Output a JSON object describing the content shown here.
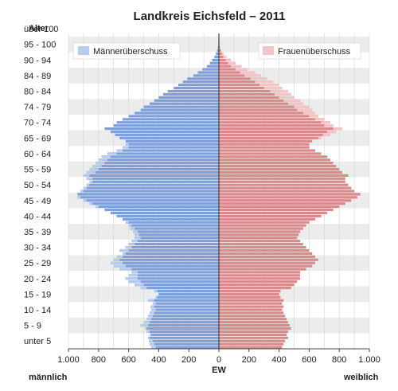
{
  "chart_data": {
    "type": "bar",
    "title": "Landkreis Eichsfeld – 2011",
    "y_axis_title": "Alter",
    "x_axis_title": "EW",
    "left_label": "männlich",
    "right_label": "weiblich",
    "age_tick_labels": [
      "unter 5",
      "5 - 9",
      "10 - 14",
      "15 - 19",
      "20 - 24",
      "25 - 29",
      "30 - 34",
      "35 - 39",
      "40 - 44",
      "45 - 49",
      "50 - 54",
      "55 - 59",
      "60 - 64",
      "65 - 69",
      "70 - 74",
      "74 - 79",
      "80 - 84",
      "84 - 89",
      "90 - 94",
      "95 - 100",
      "über 100"
    ],
    "x_tick_labels": [
      "1.000",
      "800",
      "600",
      "400",
      "200",
      "0",
      "200",
      "400",
      "600",
      "800",
      "1.000"
    ],
    "xlim": [
      -1000,
      1000
    ],
    "ages": [
      0,
      1,
      2,
      3,
      4,
      5,
      6,
      7,
      8,
      9,
      10,
      11,
      12,
      13,
      14,
      15,
      16,
      17,
      18,
      19,
      20,
      21,
      22,
      23,
      24,
      25,
      26,
      27,
      28,
      29,
      30,
      31,
      32,
      33,
      34,
      35,
      36,
      37,
      38,
      39,
      40,
      41,
      42,
      43,
      44,
      45,
      46,
      47,
      48,
      49,
      50,
      51,
      52,
      53,
      54,
      55,
      56,
      57,
      58,
      59,
      60,
      61,
      62,
      63,
      64,
      65,
      66,
      67,
      68,
      69,
      70,
      71,
      72,
      73,
      74,
      75,
      76,
      77,
      78,
      79,
      80,
      81,
      82,
      83,
      84,
      85,
      86,
      87,
      88,
      89,
      90,
      91,
      92,
      93,
      94,
      95,
      96,
      97,
      98,
      99,
      100
    ],
    "series": [
      {
        "name": "männlich",
        "values": [
          450,
          460,
          465,
          470,
          460,
          480,
          490,
          520,
          500,
          480,
          470,
          460,
          450,
          455,
          440,
          470,
          420,
          400,
          430,
          520,
          560,
          600,
          620,
          600,
          580,
          660,
          700,
          720,
          700,
          680,
          640,
          660,
          620,
          600,
          580,
          560,
          560,
          570,
          590,
          600,
          620,
          640,
          680,
          720,
          760,
          820,
          860,
          900,
          940,
          940,
          920,
          900,
          880,
          860,
          880,
          900,
          880,
          860,
          840,
          820,
          800,
          780,
          740,
          680,
          640,
          620,
          620,
          660,
          690,
          720,
          760,
          700,
          680,
          640,
          600,
          560,
          520,
          500,
          460,
          430,
          400,
          370,
          340,
          300,
          270,
          240,
          210,
          170,
          140,
          110,
          80,
          60,
          45,
          30,
          20,
          12,
          7,
          4,
          2,
          1,
          0
        ]
      },
      {
        "name": "weiblich",
        "values": [
          420,
          430,
          440,
          460,
          450,
          460,
          480,
          470,
          460,
          450,
          440,
          430,
          420,
          430,
          420,
          430,
          410,
          400,
          410,
          480,
          500,
          520,
          540,
          540,
          540,
          580,
          620,
          640,
          660,
          640,
          620,
          600,
          580,
          560,
          540,
          520,
          530,
          540,
          560,
          580,
          600,
          640,
          680,
          720,
          760,
          800,
          840,
          880,
          920,
          940,
          900,
          880,
          860,
          840,
          840,
          860,
          820,
          800,
          780,
          760,
          740,
          720,
          680,
          640,
          600,
          600,
          620,
          680,
          740,
          780,
          820,
          760,
          740,
          700,
          660,
          640,
          620,
          600,
          560,
          540,
          500,
          480,
          460,
          420,
          400,
          360,
          320,
          280,
          240,
          190,
          150,
          110,
          80,
          50,
          30,
          15,
          8,
          4,
          2,
          1,
          0
        ]
      }
    ],
    "surplus": {
      "men": {
        "label": "Männerüberschuss",
        "color": "#b8cbec"
      },
      "women": {
        "label": "Frauenüberschuss",
        "color": "#f2c6c6"
      }
    },
    "colors": {
      "male": "#7f9fda",
      "female": "#d98a8a"
    },
    "grid": true,
    "legend": "top-left and top-right"
  }
}
